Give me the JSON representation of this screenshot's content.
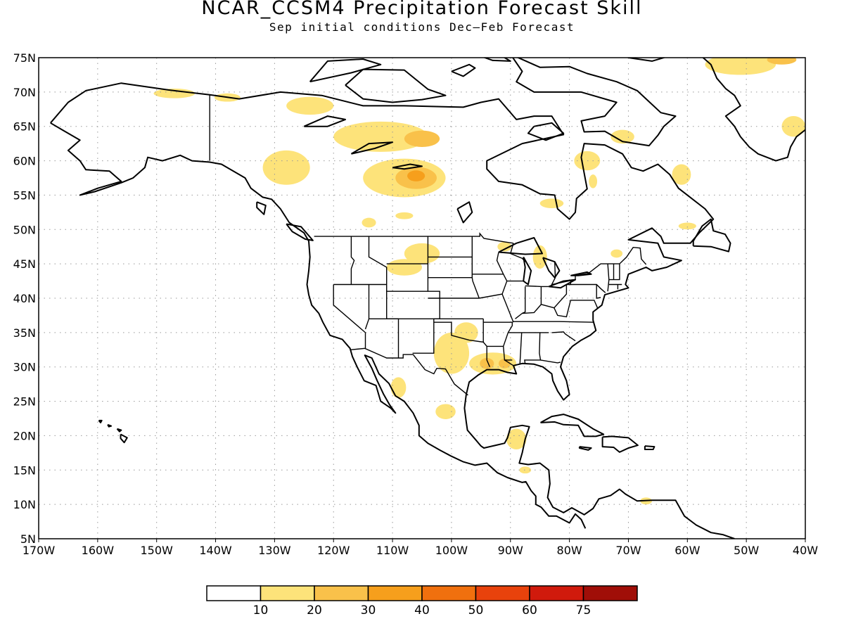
{
  "title": "NCAR_CCSM4 Precipitation Forecast Skill",
  "subtitle": "Sep initial conditions   Dec–Feb Forecast",
  "map": {
    "lon_range": [
      -170,
      -40
    ],
    "lat_range": [
      5,
      75
    ],
    "grid": true,
    "lon_labels": [
      "170W",
      "160W",
      "150W",
      "140W",
      "130W",
      "120W",
      "110W",
      "100W",
      "90W",
      "80W",
      "70W",
      "60W",
      "50W",
      "40W"
    ],
    "lat_labels": [
      "75N",
      "70N",
      "65N",
      "60N",
      "55N",
      "50N",
      "45N",
      "40N",
      "35N",
      "30N",
      "25N",
      "20N",
      "15N",
      "10N",
      "5N"
    ]
  },
  "colorbar": {
    "colors": [
      "#ffffff",
      "#fde37a",
      "#f9c14a",
      "#f69f1c",
      "#f0700e",
      "#e8420c",
      "#d01a0c",
      "#a00e08"
    ],
    "labels": [
      "10",
      "20",
      "30",
      "40",
      "50",
      "60",
      "75"
    ]
  },
  "skill_regions": [
    {
      "level": 1,
      "lon": -147,
      "lat": 69.8,
      "rlon": 3.5,
      "rlat": 0.7
    },
    {
      "level": 1,
      "lon": -138,
      "lat": 69.2,
      "rlon": 2.2,
      "rlat": 0.6
    },
    {
      "level": 1,
      "lon": -124,
      "lat": 68.0,
      "rlon": 4.0,
      "rlat": 1.3
    },
    {
      "level": 1,
      "lon": -112,
      "lat": 63.5,
      "rlon": 8.0,
      "rlat": 2.2
    },
    {
      "level": 2,
      "lon": -105,
      "lat": 63.2,
      "rlon": 3.0,
      "rlat": 1.2
    },
    {
      "level": 1,
      "lon": -128,
      "lat": 59.0,
      "rlon": 4.0,
      "rlat": 2.5
    },
    {
      "level": 1,
      "lon": -108,
      "lat": 57.5,
      "rlon": 7.0,
      "rlat": 2.8
    },
    {
      "level": 2,
      "lon": -106,
      "lat": 57.5,
      "rlon": 3.5,
      "rlat": 1.6
    },
    {
      "level": 3,
      "lon": -106,
      "lat": 57.8,
      "rlon": 1.5,
      "rlat": 0.8
    },
    {
      "level": 1,
      "lon": -108,
      "lat": 52.0,
      "rlon": 1.5,
      "rlat": 0.5
    },
    {
      "level": 1,
      "lon": -114,
      "lat": 51.0,
      "rlon": 1.2,
      "rlat": 0.7
    },
    {
      "level": 1,
      "lon": -105,
      "lat": 46.5,
      "rlon": 3.0,
      "rlat": 1.5
    },
    {
      "level": 1,
      "lon": -108,
      "lat": 44.5,
      "rlon": 3.0,
      "rlat": 1.2
    },
    {
      "level": 1,
      "lon": -100,
      "lat": 32.0,
      "rlon": 3.0,
      "rlat": 3.0
    },
    {
      "level": 1,
      "lon": -97.5,
      "lat": 35.0,
      "rlon": 2.0,
      "rlat": 1.5
    },
    {
      "level": 1,
      "lon": -93,
      "lat": 30.5,
      "rlon": 4.0,
      "rlat": 1.6
    },
    {
      "level": 2,
      "lon": -94,
      "lat": 30.5,
      "rlon": 1.2,
      "rlat": 0.8
    },
    {
      "level": 2,
      "lon": -91,
      "lat": 30.5,
      "rlon": 1.0,
      "rlat": 0.7
    },
    {
      "level": 1,
      "lon": -109,
      "lat": 27.0,
      "rlon": 1.3,
      "rlat": 1.5
    },
    {
      "level": 1,
      "lon": -101,
      "lat": 23.5,
      "rlon": 1.7,
      "rlat": 1.1
    },
    {
      "level": 1,
      "lon": -89,
      "lat": 19.5,
      "rlon": 1.7,
      "rlat": 1.5
    },
    {
      "level": 1,
      "lon": -85,
      "lat": 46.0,
      "rlon": 1.2,
      "rlat": 1.7
    },
    {
      "level": 1,
      "lon": -87.5,
      "lat": 15.0,
      "rlon": 1.0,
      "rlat": 0.5
    },
    {
      "level": 1,
      "lon": -77,
      "lat": 60.0,
      "rlon": 2.2,
      "rlat": 1.4
    },
    {
      "level": 1,
      "lon": -76,
      "lat": 57.0,
      "rlon": 0.7,
      "rlat": 1.0
    },
    {
      "level": 1,
      "lon": -71,
      "lat": 63.5,
      "rlon": 2.0,
      "rlat": 1.0
    },
    {
      "level": 1,
      "lon": -61,
      "lat": 58.0,
      "rlon": 1.6,
      "rlat": 1.5
    },
    {
      "level": 1,
      "lon": -83,
      "lat": 53.8,
      "rlon": 2.0,
      "rlat": 0.7
    },
    {
      "level": 1,
      "lon": -60,
      "lat": 50.5,
      "rlon": 1.5,
      "rlat": 0.5
    },
    {
      "level": 1,
      "lon": -51,
      "lat": 74.0,
      "rlon": 6.0,
      "rlat": 1.5
    },
    {
      "level": 2,
      "lon": -44,
      "lat": 74.7,
      "rlon": 2.5,
      "rlat": 0.7
    },
    {
      "level": 1,
      "lon": -42,
      "lat": 65.0,
      "rlon": 2.0,
      "rlat": 1.5
    },
    {
      "level": 1,
      "lon": -67,
      "lat": 10.5,
      "rlon": 1.0,
      "rlat": 0.5
    },
    {
      "level": 1,
      "lon": -91,
      "lat": 47.5,
      "rlon": 1.2,
      "rlat": 0.7
    },
    {
      "level": 1,
      "lon": -72,
      "lat": 46.5,
      "rlon": 1.0,
      "rlat": 0.6
    }
  ]
}
